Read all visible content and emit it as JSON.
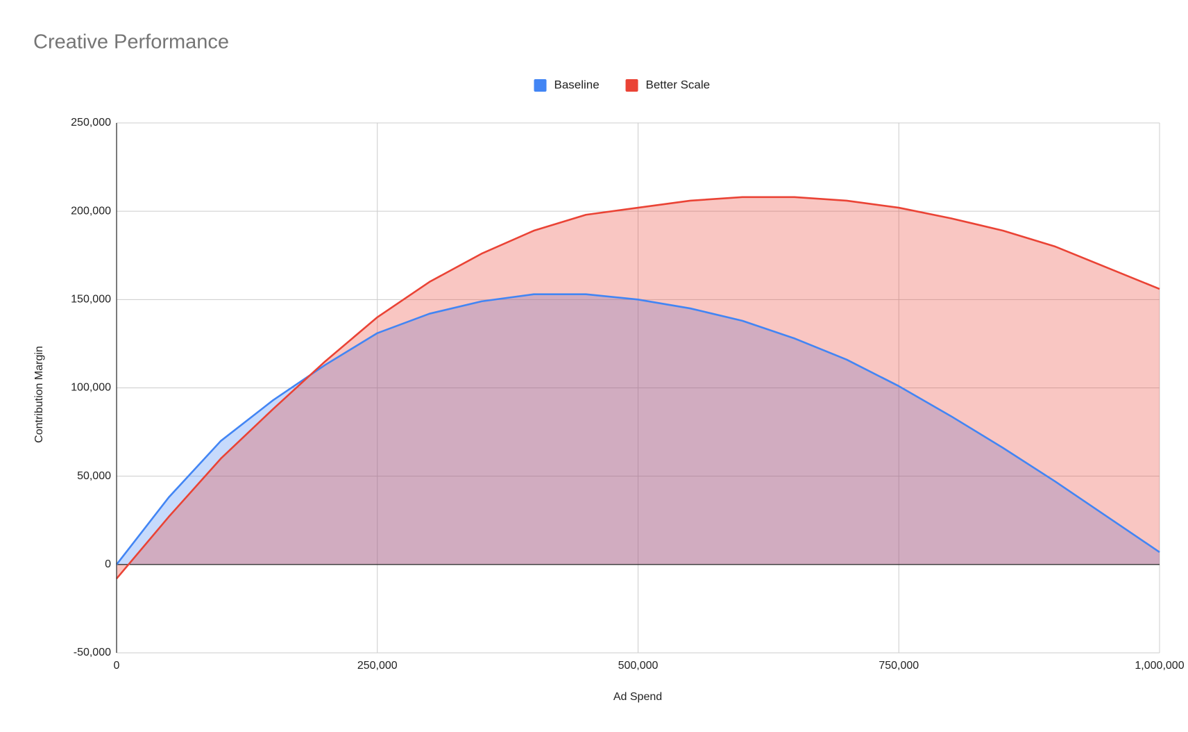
{
  "chart_data": {
    "type": "area",
    "title": "Creative Performance",
    "x_label": "Ad Spend",
    "y_label": "Contribution Margin",
    "x": [
      0,
      50000,
      100000,
      150000,
      200000,
      250000,
      300000,
      350000,
      400000,
      450000,
      500000,
      550000,
      600000,
      650000,
      700000,
      750000,
      800000,
      850000,
      900000,
      950000,
      1000000
    ],
    "series": [
      {
        "name": "Baseline",
        "color": "#4285f4",
        "values": [
          0,
          38000,
          70000,
          93000,
          113000,
          131000,
          142000,
          149000,
          153000,
          153000,
          150000,
          145000,
          138000,
          128000,
          116000,
          101000,
          84000,
          66000,
          47000,
          27000,
          7000
        ]
      },
      {
        "name": "Better Scale",
        "color": "#ea4335",
        "values": [
          -8000,
          27000,
          60000,
          88000,
          115000,
          140000,
          160000,
          176000,
          189000,
          198000,
          202000,
          206000,
          208000,
          208000,
          206000,
          202000,
          196000,
          189000,
          180000,
          168000,
          156000
        ]
      }
    ],
    "xlim": [
      0,
      1000000
    ],
    "xticks": [
      0,
      {
        "value": 250000,
        "label": "250,000"
      },
      {
        "value": 500000,
        "label": "500,000"
      },
      {
        "value": 750000,
        "label": "750,000"
      },
      {
        "value": 1000000,
        "label": "1,000,000"
      }
    ],
    "ylim": [
      -50000,
      250000
    ],
    "yticks": [
      {
        "value": -50000,
        "label": "-50,000"
      },
      0,
      {
        "value": 50000,
        "label": "50,000"
      },
      {
        "value": 100000,
        "label": "100,000"
      },
      {
        "value": 150000,
        "label": "150,000"
      },
      {
        "value": 200000,
        "label": "200,000"
      },
      {
        "value": 250000,
        "label": "250,000"
      }
    ],
    "grid": true,
    "legend": "top"
  }
}
